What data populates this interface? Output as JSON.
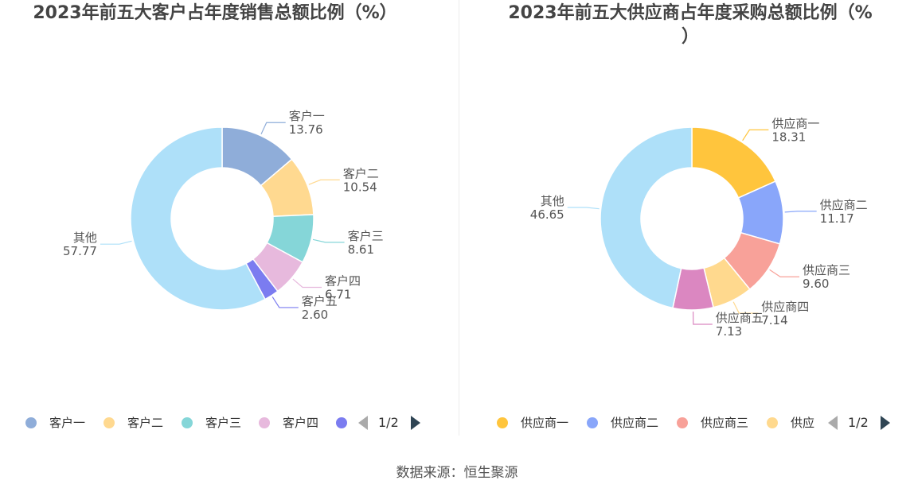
{
  "charts": [
    {
      "id": "left",
      "title": "2023年前五大客户占年度销售总额比例（%）",
      "pager": "1/2",
      "legend_visible": [
        "客户一",
        "客户二",
        "客户三",
        "客户四",
        ""
      ]
    },
    {
      "id": "right",
      "title": "2023年前五大供应商占年度采购总额比例（%\n）",
      "pager": "1/2",
      "legend_visible": [
        "供应商一",
        "供应商二",
        "供应商三",
        "供应"
      ]
    }
  ],
  "source": "数据来源：恒生聚源",
  "chart_data": [
    {
      "type": "pie",
      "title": "2023年前五大客户占年度销售总额比例（%）",
      "categories": [
        "客户一",
        "客户二",
        "客户三",
        "客户四",
        "客户五",
        "其他"
      ],
      "values": [
        13.76,
        10.54,
        8.61,
        6.71,
        2.6,
        57.77
      ],
      "value_labels": [
        "13.76",
        "10.54",
        "8.61",
        "6.71",
        "2.60",
        "57.77"
      ],
      "colors": [
        "#8fadd9",
        "#ffd990",
        "#85d6d8",
        "#e7b9dd",
        "#7b7cf0",
        "#aee0f9"
      ],
      "donut": true,
      "legend": "bottom"
    },
    {
      "type": "pie",
      "title": "2023年前五大供应商占年度采购总额比例（%）",
      "categories": [
        "供应商一",
        "供应商二",
        "供应商三",
        "供应商四",
        "供应商五",
        "其他"
      ],
      "values": [
        18.31,
        11.17,
        9.6,
        7.14,
        7.13,
        46.65
      ],
      "value_labels": [
        "18.31",
        "11.17",
        "9.60",
        "7.14",
        "7.13",
        "46.65"
      ],
      "colors": [
        "#ffc53d",
        "#89a6fa",
        "#f8a199",
        "#ffd98e",
        "#db87c1",
        "#aee0f9"
      ],
      "donut": true,
      "legend": "bottom"
    }
  ]
}
